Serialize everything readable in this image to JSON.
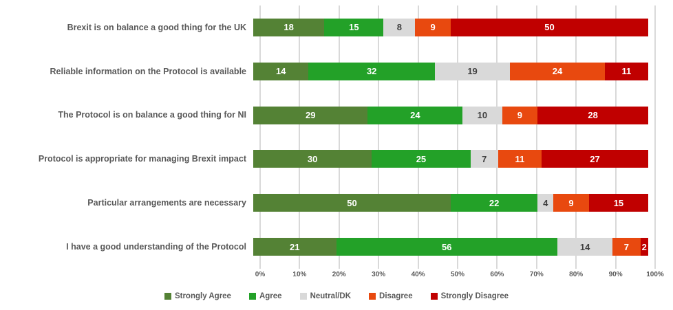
{
  "chart_data": {
    "type": "bar",
    "orientation": "horizontal-stacked",
    "title": "",
    "xlabel": "",
    "ylabel": "",
    "xlim": [
      0,
      100
    ],
    "grid": true,
    "legend_position": "bottom",
    "categories": [
      "Brexit is on balance a good thing for the UK",
      "Reliable information on the Protocol is available",
      "The Protocol is on balance a good thing for NI",
      "Protocol is appropriate for managing Brexit impact",
      "Particular arrangements are necessary",
      "I have a good understanding of the Protocol"
    ],
    "series": [
      {
        "name": "Strongly Agree",
        "color": "#548235",
        "label_color": "#ffffff",
        "values": [
          18,
          14,
          29,
          30,
          50,
          21
        ]
      },
      {
        "name": "Agree",
        "color": "#23a128",
        "label_color": "#ffffff",
        "values": [
          15,
          32,
          24,
          25,
          22,
          56
        ]
      },
      {
        "name": "Neutral/DK",
        "color": "#d9d9d9",
        "label_color": "#3f3f3f",
        "values": [
          8,
          19,
          10,
          7,
          4,
          14
        ]
      },
      {
        "name": "Disagree",
        "color": "#e8490f",
        "label_color": "#ffffff",
        "values": [
          9,
          24,
          9,
          11,
          9,
          7
        ]
      },
      {
        "name": "Strongly Disagree",
        "color": "#c00000",
        "label_color": "#ffffff",
        "values": [
          50,
          11,
          28,
          27,
          15,
          2
        ]
      }
    ],
    "x_ticks": [
      "0%",
      "10%",
      "20%",
      "30%",
      "40%",
      "50%",
      "60%",
      "70%",
      "80%",
      "90%",
      "100%"
    ],
    "gridline_color": "#d9d9d9",
    "category_label_color": "#595959",
    "tick_label_color": "#595959",
    "legend_label_color": "#595959"
  }
}
